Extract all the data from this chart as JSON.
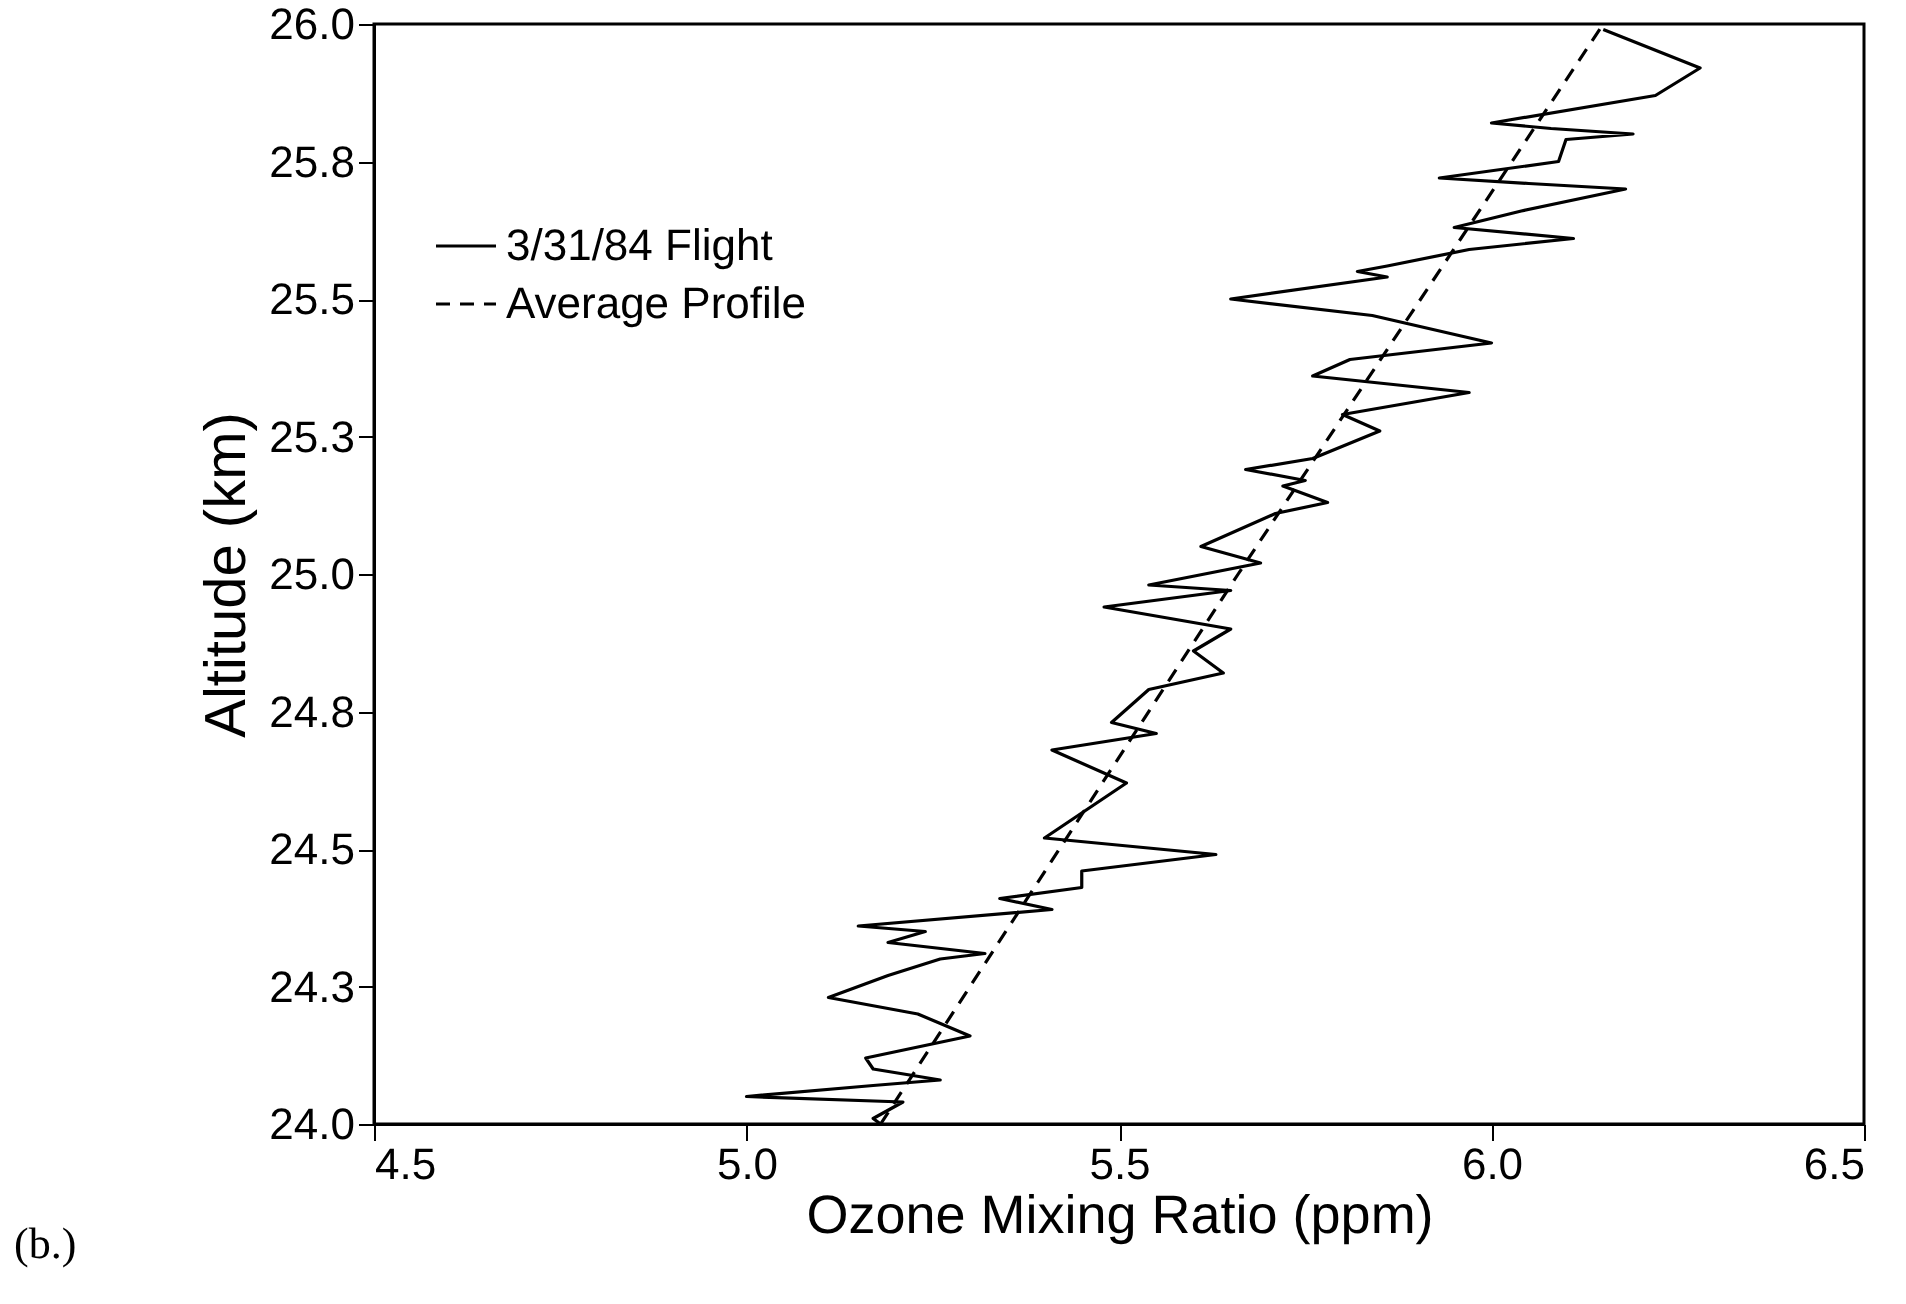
{
  "chart_data": {
    "type": "line",
    "xlabel": "Ozone Mixing Ratio (ppm)",
    "ylabel": "Altitude (km)",
    "xlim": [
      4.5,
      6.5
    ],
    "xticks": [
      4.5,
      {
        "value": 5,
        "label": "5.0"
      },
      5.5,
      {
        "value": 6,
        "label": "6.0"
      },
      6.5
    ],
    "ylim": [
      24,
      26
    ],
    "yticks": [
      {
        "value": 24,
        "label": "24.0"
      },
      {
        "value": 24.25,
        "label": "24.3"
      },
      {
        "value": 24.5,
        "label": "24.5"
      },
      {
        "value": 24.75,
        "label": "24.8"
      },
      {
        "value": 25,
        "label": "25.0"
      },
      {
        "value": 25.25,
        "label": "25.3"
      },
      {
        "value": 25.5,
        "label": "25.5"
      },
      {
        "value": 25.75,
        "label": "25.8"
      },
      {
        "value": 26,
        "label": "26.0"
      }
    ],
    "grid": false,
    "legend": "top left",
    "annotations": [
      "(b.)"
    ],
    "series": [
      {
        "name": "3/31/84 Flight",
        "color": "#000000",
        "line_style": "solid",
        "x": [
          6.15,
          6.28,
          6.22,
          6.0,
          6.08,
          6.19,
          6.1,
          6.09,
          5.93,
          6.05,
          6.18,
          6.04,
          5.95,
          6.11,
          5.97,
          5.86,
          5.82,
          5.86,
          5.65,
          5.84,
          6.0,
          5.81,
          5.76,
          5.97,
          5.8,
          5.85,
          5.76,
          5.67,
          5.75,
          5.72,
          5.78,
          5.71,
          5.61,
          5.69,
          5.54,
          5.65,
          5.48,
          5.65,
          5.6,
          5.64,
          5.54,
          5.49,
          5.55,
          5.41,
          5.51,
          5.4,
          5.63,
          5.45,
          5.45,
          5.34,
          5.41,
          5.15,
          5.24,
          5.19,
          5.32,
          5.26,
          5.19,
          5.11,
          5.23,
          5.3,
          5.16,
          5.17,
          5.26,
          5.17,
          5.0,
          5.21,
          5.17,
          5.18
        ],
        "values": [
          25.99,
          25.92,
          25.87,
          25.82,
          25.81,
          25.8,
          25.79,
          25.75,
          25.72,
          25.71,
          25.7,
          25.66,
          25.63,
          25.61,
          25.59,
          25.56,
          25.55,
          25.54,
          25.5,
          25.47,
          25.42,
          25.39,
          25.36,
          25.33,
          25.29,
          25.26,
          25.21,
          25.19,
          25.17,
          25.16,
          25.13,
          25.11,
          25.05,
          25.02,
          24.98,
          24.97,
          24.94,
          24.9,
          24.86,
          24.82,
          24.79,
          24.73,
          24.71,
          24.68,
          24.62,
          24.52,
          24.49,
          24.46,
          24.43,
          24.41,
          24.39,
          24.36,
          24.35,
          24.33,
          24.31,
          24.3,
          24.27,
          24.23,
          24.2,
          24.16,
          24.12,
          24.1,
          24.08,
          24.07,
          24.05,
          24.04,
          24.01,
          24.0
        ]
      },
      {
        "name": "Average Profile",
        "color": "#000000",
        "line_style": "dashed",
        "x": [
          5.18,
          5.66,
          6.15
        ],
        "values": [
          24.0,
          25.0,
          26.0
        ]
      }
    ]
  }
}
